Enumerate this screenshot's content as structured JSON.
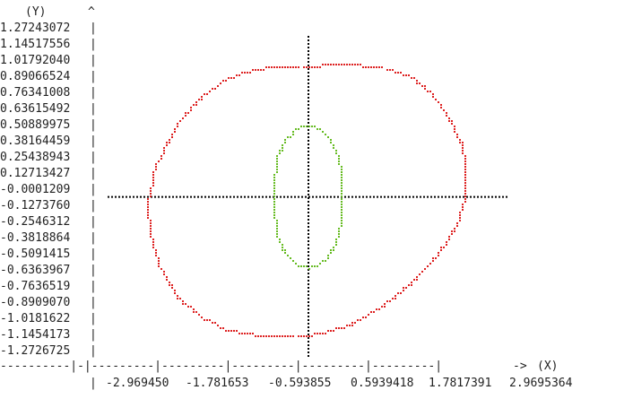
{
  "chart_data": {
    "type": "scatter",
    "title": "",
    "xlabel": "(X)",
    "ylabel": "(Y)",
    "y_axis_arrow": "^",
    "x_axis_arrow": "->",
    "x_axis_rule": "----------|-|---------|---------|---------|---------|---------|",
    "x_ticks": [
      "-2.969450",
      "-1.781653",
      "-0.593855",
      "0.5939418",
      "1.7817391",
      "2.9695364"
    ],
    "y_ticks": [
      "1.27243072",
      "1.14517556",
      "1.01792040",
      "0.89066524",
      "0.76341008",
      "0.63615492",
      "0.50889975",
      "0.38164459",
      "0.25438943",
      "0.12713427",
      "-0.0001209",
      "-0.1273760",
      "-0.2546312",
      "-0.3818864",
      "-0.5091415",
      "-0.6363967",
      "-0.7636519",
      "-0.8909070",
      "-1.0181622",
      "-1.1454173",
      "-1.2726725"
    ],
    "xlim": [
      -4.0,
      4.0
    ],
    "ylim": [
      -1.35,
      1.36
    ],
    "axis_color": "#000000",
    "series": [
      {
        "color": "#dd2222",
        "points": [
          [
            0.0,
            1.1
          ],
          [
            0.4,
            1.11
          ],
          [
            1.0,
            1.11
          ],
          [
            1.6,
            1.08
          ],
          [
            2.1,
            1.0
          ],
          [
            2.5,
            0.85
          ],
          [
            2.8,
            0.67
          ],
          [
            3.05,
            0.45
          ],
          [
            3.15,
            0.25
          ],
          [
            3.13,
            0.0
          ],
          [
            3.0,
            -0.2
          ],
          [
            2.7,
            -0.42
          ],
          [
            2.4,
            -0.58
          ],
          [
            2.0,
            -0.75
          ],
          [
            1.5,
            -0.92
          ],
          [
            0.9,
            -1.07
          ],
          [
            0.3,
            -1.15
          ],
          [
            0.0,
            -1.17
          ],
          [
            -0.5,
            -1.18
          ],
          [
            -1.0,
            -1.17
          ],
          [
            -1.6,
            -1.13
          ],
          [
            -2.1,
            -1.02
          ],
          [
            -2.6,
            -0.85
          ],
          [
            -2.95,
            -0.6
          ],
          [
            -3.15,
            -0.3
          ],
          [
            -3.2,
            -0.05
          ],
          [
            -3.15,
            0.0
          ],
          [
            -3.05,
            0.25
          ],
          [
            -2.8,
            0.45
          ],
          [
            -2.5,
            0.67
          ],
          [
            -2.1,
            0.85
          ],
          [
            -1.6,
            1.0
          ],
          [
            -1.0,
            1.08
          ],
          [
            -0.4,
            1.1
          ]
        ]
      },
      {
        "color": "#66bb22",
        "points": [
          [
            0.0,
            0.6
          ],
          [
            0.2,
            0.58
          ],
          [
            0.45,
            0.48
          ],
          [
            0.62,
            0.32
          ],
          [
            0.68,
            0.1
          ],
          [
            0.68,
            -0.1
          ],
          [
            0.62,
            -0.32
          ],
          [
            0.45,
            -0.48
          ],
          [
            0.2,
            -0.58
          ],
          [
            0.0,
            -0.6
          ],
          [
            -0.2,
            -0.58
          ],
          [
            -0.45,
            -0.48
          ],
          [
            -0.62,
            -0.32
          ],
          [
            -0.68,
            -0.1
          ],
          [
            -0.68,
            0.1
          ],
          [
            -0.62,
            0.32
          ],
          [
            -0.45,
            0.48
          ],
          [
            -0.2,
            0.58
          ]
        ]
      }
    ]
  }
}
